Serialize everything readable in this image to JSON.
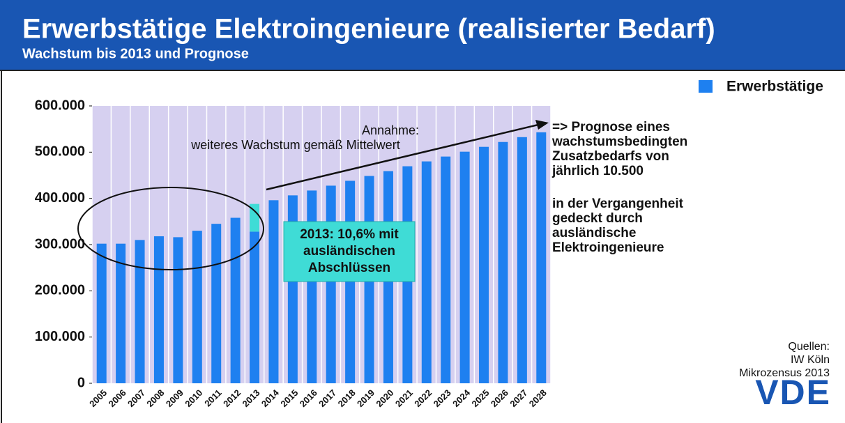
{
  "chart_data": {
    "type": "bar",
    "stacked": true,
    "title": "Erwerbstätige Elektroingenieure (realisierter Bedarf)",
    "subtitle": "Wachstum bis 2013 und Prognose",
    "categories": [
      "2005",
      "2006",
      "2007",
      "2008",
      "2009",
      "2010",
      "2011",
      "2012",
      "2013",
      "2014",
      "2015",
      "2016",
      "2017",
      "2018",
      "2019",
      "2020",
      "2021",
      "2022",
      "2023",
      "2024",
      "2025",
      "2026",
      "2027",
      "2028"
    ],
    "series": [
      {
        "name": "Erwerbstätige",
        "color": "#1e80f0",
        "values": [
          302000,
          302000,
          310000,
          318000,
          316000,
          330000,
          345000,
          358000,
          328000,
          396000,
          406500,
          417000,
          427500,
          438000,
          448500,
          459000,
          469500,
          480000,
          490500,
          501000,
          511500,
          522000,
          532500,
          543000
        ]
      },
      {
        "color": "#3fdcd6",
        "values": [
          null,
          null,
          null,
          null,
          null,
          null,
          null,
          null,
          60000,
          null,
          null,
          null,
          null,
          null,
          null,
          null,
          null,
          null,
          null,
          null,
          null,
          null,
          null,
          null
        ]
      }
    ],
    "ylim": [
      0,
      600000
    ],
    "yticks": [
      0,
      {
        "value": 100000,
        "label": "100.000"
      },
      {
        "value": 200000,
        "label": "200.000"
      },
      {
        "value": 300000,
        "label": "300.000"
      },
      {
        "value": 400000,
        "label": "400.000"
      },
      {
        "value": 500000,
        "label": "500.000"
      },
      {
        "value": 600000,
        "label": "600.000"
      }
    ],
    "plot_background": "#d6d0f0",
    "legend": "top-right",
    "annotations": {
      "assumption": [
        "Annahme:",
        "weiteres Wachstum gemäß Mittelwert"
      ],
      "callout": [
        "2013: 10,6% mit",
        "ausländischen",
        "Abschlüssen"
      ],
      "forecast": [
        "=> Prognose eines",
        "wachstumsbedingten",
        "Zusatzbedarfs von",
        "jährlich 10.500"
      ],
      "past": [
        "in der Vergangenheit",
        "gedeckt durch",
        "ausländische",
        "Elektroingenieure"
      ],
      "sources": [
        "Quellen:",
        "IW Köln",
        "Mikrozensus 2013"
      ],
      "logo": "VDE"
    }
  }
}
